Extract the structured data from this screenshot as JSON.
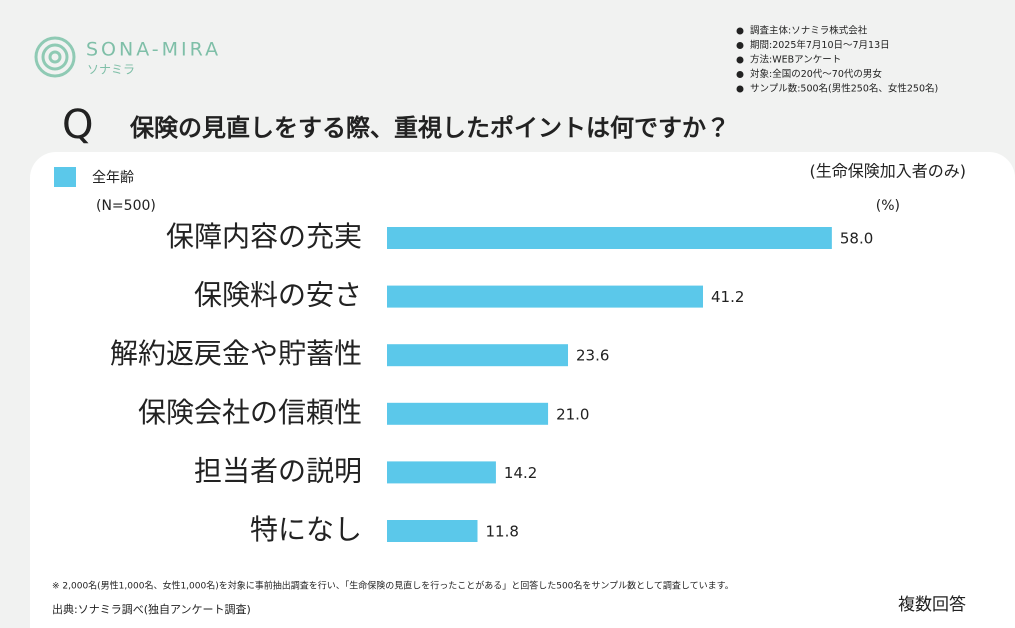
{
  "logo": {
    "name": "SONA-MIRA",
    "kana": "ソナミラ"
  },
  "survey_notes": [
    "調査主体:ソナミラ株式会社",
    "期間:2025年7月10日〜7月13日",
    "方法:WEBアンケート",
    "対象:全国の20代〜70代の男女",
    "サンプル数:500名(男性250名、女性250名)"
  ],
  "question_mark": "Q",
  "chart_data": {
    "type": "bar",
    "orientation": "horizontal",
    "title": "保険の見直しをする際、重視したポイントは何ですか？",
    "subtitle": "(生命保険加入者のみ)",
    "sample_size": "(N=500)",
    "unit": "(%)",
    "categories": [
      "保障内容の充実",
      "保険料の安さ",
      "解約返戻金や貯蓄性",
      "保険会社の信頼性",
      "担当者の説明",
      "特になし"
    ],
    "series": [
      {
        "name": "全年齢",
        "color": "#5bc8ea",
        "values": [
          58,
          41.2,
          23.6,
          21,
          14.2,
          11.8
        ],
        "value_labels": [
          "58.0",
          "41.2",
          "23.6",
          "21.0",
          "14.2",
          "11.8"
        ]
      }
    ],
    "legend": "top-left",
    "grid": false
  },
  "footnote": "※ 2,000名(男性1,000名、女性1,000名)を対象に事前抽出調査を行い、「生命保険の見直しを行ったことがある」と回答した500名をサンプル数として調査しています。",
  "source": "出典:ソナミラ調べ(独自アンケート調査)",
  "answer_type": "複数回答"
}
